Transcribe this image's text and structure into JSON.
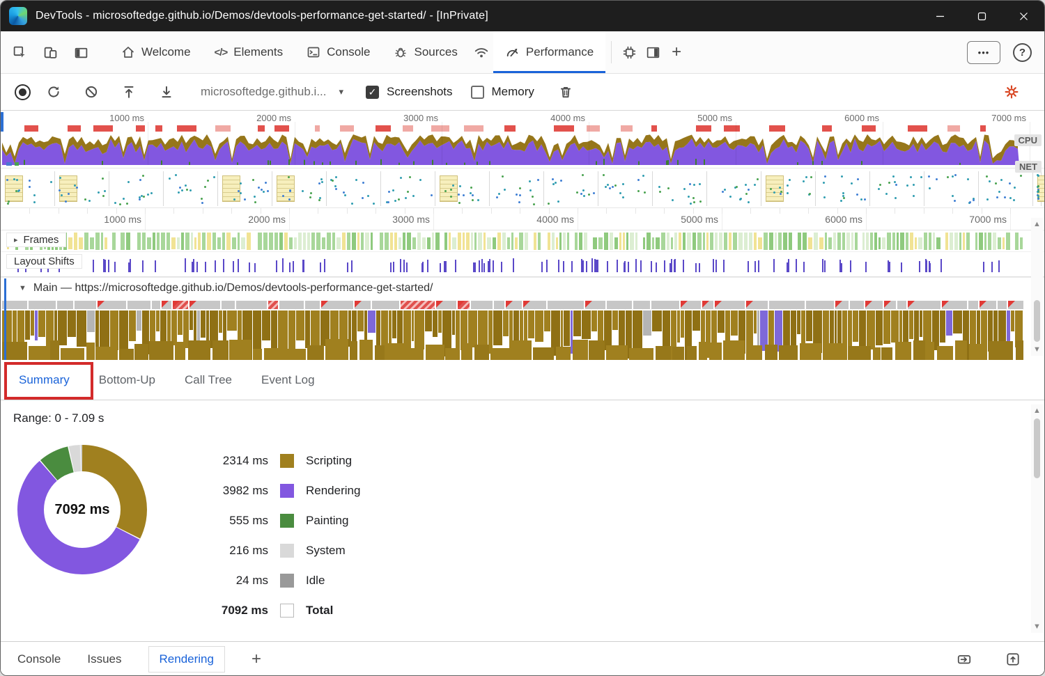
{
  "window": {
    "title": "DevTools - microsoftedge.github.io/Demos/devtools-performance-get-started/ - [InPrivate]"
  },
  "icons": {
    "caret": "▾",
    "frames_arrow": "▸",
    "main_arrow": "▼",
    "scroll_up": "▲",
    "scroll_down": "▼",
    "check": "✓",
    "overflow": "•••",
    "help": "?",
    "plus": "+",
    "elements_code": "</>"
  },
  "main_toolbar": {
    "tabs": [
      {
        "label": "Welcome",
        "icon": "home-icon"
      },
      {
        "label": "Elements",
        "icon": "code-icon"
      },
      {
        "label": "Console",
        "icon": "console-icon"
      },
      {
        "label": "Sources",
        "icon": "bug-icon"
      },
      {
        "label": "Performance",
        "icon": "gauge-icon",
        "active": true
      }
    ]
  },
  "perf_toolbar": {
    "url_selector": "microsoftedge.github.i...",
    "screenshots_label": "Screenshots",
    "screenshots_checked": true,
    "memory_label": "Memory",
    "memory_checked": false
  },
  "timeline": {
    "time_labels": [
      "1000 ms",
      "2000 ms",
      "3000 ms",
      "4000 ms",
      "5000 ms",
      "6000 ms",
      "7000 ms"
    ],
    "cpu_badge": "CPU",
    "net_badge": "NET"
  },
  "tracks": {
    "frames_label": "Frames",
    "layout_shifts_label": "Layout Shifts",
    "main_label": "Main — https://microsoftedge.github.io/Demos/devtools-performance-get-started/"
  },
  "bottom_tabs": {
    "items": [
      {
        "label": "Summary",
        "active": true,
        "annotated": true
      },
      {
        "label": "Bottom-Up"
      },
      {
        "label": "Call Tree"
      },
      {
        "label": "Event Log"
      }
    ]
  },
  "summary": {
    "range_label": "Range: 0 - 7.09 s",
    "donut_center": "7092 ms",
    "legend": [
      {
        "value": "2314 ms",
        "label": "Scripting",
        "color": "#a0801f"
      },
      {
        "value": "3982 ms",
        "label": "Rendering",
        "color": "#8257e0"
      },
      {
        "value": "555 ms",
        "label": "Painting",
        "color": "#4a8c3f"
      },
      {
        "value": "216 ms",
        "label": "System",
        "color": "#d9d9d9"
      },
      {
        "value": "24 ms",
        "label": "Idle",
        "color": "#999999"
      },
      {
        "value": "7092 ms",
        "label": "Total",
        "color": null,
        "bold": true
      }
    ]
  },
  "chart_data": {
    "type": "pie",
    "title": "Performance summary breakdown",
    "categories": [
      "Scripting",
      "Rendering",
      "Painting",
      "System",
      "Idle"
    ],
    "values": [
      2314,
      3982,
      555,
      216,
      24
    ],
    "unit": "ms",
    "total": 7092,
    "center_label": "7092 ms",
    "colors": {
      "Scripting": "#a0801f",
      "Rendering": "#8257e0",
      "Painting": "#4a8c3f",
      "System": "#d9d9d9",
      "Idle": "#999999"
    },
    "legend_position": "right"
  },
  "drawer": {
    "tabs": [
      {
        "label": "Console"
      },
      {
        "label": "Issues"
      },
      {
        "label": "Rendering",
        "active": true
      }
    ]
  },
  "accent_colors": {
    "active_tab_blue": "#1a63d9",
    "annotation_red": "#d32b2b",
    "gear_orange": "#d8431f"
  }
}
